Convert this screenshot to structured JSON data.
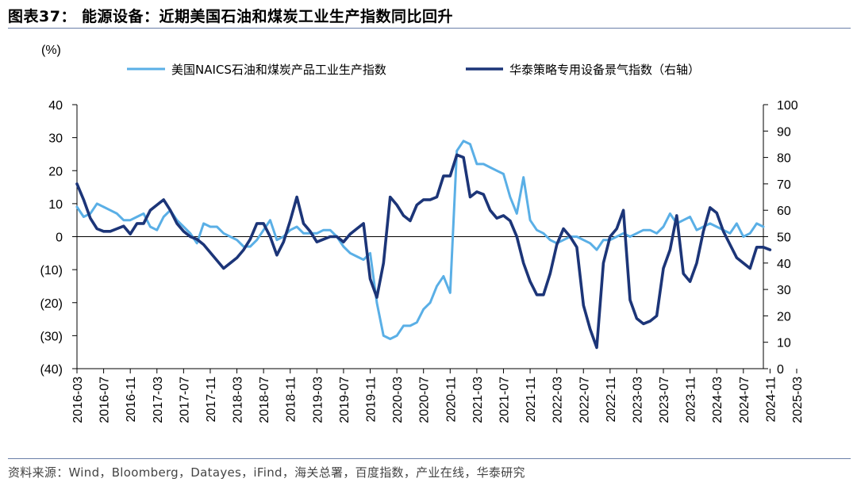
{
  "title": "图表37： 能源设备：近期美国石油和煤炭工业生产指数同比回升",
  "source": "资料来源：Wind，Bloomberg，Datayes，iFind，海关总署，百度指数，产业在线，华泰研究",
  "chart_data": {
    "type": "line",
    "left_axis": {
      "label": "(%)",
      "min": -40,
      "max": 40,
      "ticks": [
        -40,
        -30,
        -20,
        -10,
        0,
        10,
        20,
        30,
        40
      ],
      "tick_labels": [
        "(40)",
        "(30)",
        "(20)",
        "(10)",
        "0",
        "10",
        "20",
        "30",
        "40"
      ]
    },
    "right_axis": {
      "min": 0,
      "max": 100,
      "ticks": [
        0,
        10,
        20,
        30,
        40,
        50,
        60,
        70,
        80,
        90,
        100
      ],
      "tick_labels": [
        "0",
        "10",
        "20",
        "30",
        "40",
        "50",
        "60",
        "70",
        "80",
        "90",
        "100"
      ]
    },
    "x_tick_labels": [
      "2016-03",
      "2016-07",
      "2016-11",
      "2017-03",
      "2017-07",
      "2017-11",
      "2018-03",
      "2018-07",
      "2018-11",
      "2019-03",
      "2019-07",
      "2019-11",
      "2020-03",
      "2020-07",
      "2020-11",
      "2021-03",
      "2021-07",
      "2021-11",
      "2022-03",
      "2022-07",
      "2022-11",
      "2023-03",
      "2023-07",
      "2023-11",
      "2024-03",
      "2024-07",
      "2024-11",
      "2025-03"
    ],
    "grid": false,
    "legend_position": "top",
    "series": [
      {
        "name": "美国NAICS石油和煤炭产品工业生产指数",
        "axis": "left",
        "color": "#5aafe6",
        "values": [
          9,
          6,
          7,
          10,
          9,
          8,
          7,
          5,
          5,
          6,
          7,
          3,
          2,
          6,
          8,
          5,
          3,
          1,
          -2,
          4,
          3,
          3,
          1,
          0,
          -1,
          -3,
          -3,
          -1,
          2,
          5,
          -1,
          0,
          2,
          3,
          1,
          1,
          1,
          2,
          2,
          0,
          -3,
          -5,
          -6,
          -7,
          -5,
          -20,
          -30,
          -31,
          -30,
          -27,
          -27,
          -26,
          -22,
          -20,
          -15,
          -12,
          -17,
          26,
          29,
          28,
          22,
          22,
          21,
          20,
          19,
          12,
          7,
          18,
          5,
          2,
          1,
          -1,
          -2,
          -1,
          0,
          0,
          -1,
          -2,
          -4,
          -1,
          -1,
          0,
          1,
          0,
          1,
          2,
          2,
          1,
          3,
          7,
          4,
          5,
          6,
          2,
          3,
          4,
          3,
          2,
          1,
          4,
          0,
          1,
          4,
          3
        ]
      },
      {
        "name": "华泰策略专用设备景气指数（右轴）",
        "axis": "right",
        "color": "#1c3578",
        "values": [
          70,
          64,
          57,
          53,
          52,
          52,
          53,
          54,
          51,
          55,
          55,
          60,
          62,
          64,
          60,
          55,
          52,
          50,
          49,
          47,
          44,
          41,
          38,
          40,
          42,
          45,
          49,
          55,
          55,
          50,
          43,
          48,
          56,
          65,
          55,
          52,
          48,
          49,
          50,
          50,
          48,
          51,
          53,
          55,
          34,
          27,
          40,
          65,
          62,
          58,
          56,
          62,
          64,
          64,
          65,
          73,
          73,
          81,
          80,
          65,
          67,
          66,
          60,
          57,
          58,
          56,
          50,
          40,
          33,
          28,
          28,
          36,
          47,
          53,
          50,
          46,
          24,
          15,
          8,
          40,
          50,
          53,
          60,
          26,
          19,
          17,
          18,
          20,
          38,
          45,
          58,
          36,
          33,
          40,
          52,
          61,
          59,
          52,
          47,
          42,
          40,
          38,
          46,
          46,
          45
        ]
      }
    ]
  }
}
